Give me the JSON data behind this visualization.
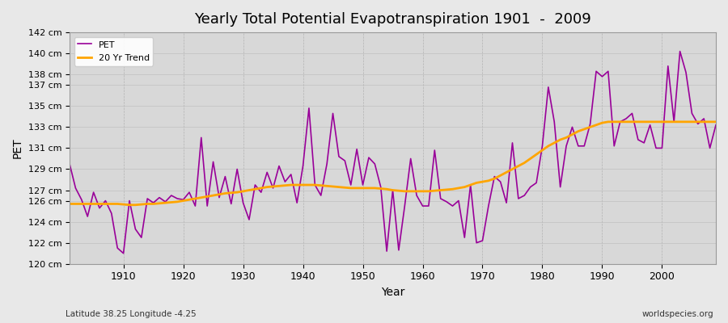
{
  "title": "Yearly Total Potential Evapotranspiration 1901  -  2009",
  "xlabel": "Year",
  "ylabel": "PET",
  "subtitle_left": "Latitude 38.25 Longitude -4.25",
  "subtitle_right": "worldspecies.org",
  "pet_color": "#990099",
  "trend_color": "#FFA500",
  "bg_color": "#e8e8e8",
  "plot_bg_color": "#d8d8d8",
  "ylim": [
    120,
    142
  ],
  "yticks": [
    120,
    122,
    124,
    126,
    127,
    129,
    131,
    133,
    135,
    137,
    138,
    140,
    142
  ],
  "years": [
    1901,
    1902,
    1903,
    1904,
    1905,
    1906,
    1907,
    1908,
    1909,
    1910,
    1911,
    1912,
    1913,
    1914,
    1915,
    1916,
    1917,
    1918,
    1919,
    1920,
    1921,
    1922,
    1923,
    1924,
    1925,
    1926,
    1927,
    1928,
    1929,
    1930,
    1931,
    1932,
    1933,
    1934,
    1935,
    1936,
    1937,
    1938,
    1939,
    1940,
    1941,
    1942,
    1943,
    1944,
    1945,
    1946,
    1947,
    1948,
    1949,
    1950,
    1951,
    1952,
    1953,
    1954,
    1955,
    1956,
    1957,
    1958,
    1959,
    1960,
    1961,
    1962,
    1963,
    1964,
    1965,
    1966,
    1967,
    1968,
    1969,
    1970,
    1971,
    1972,
    1973,
    1974,
    1975,
    1976,
    1977,
    1978,
    1979,
    1980,
    1981,
    1982,
    1983,
    1984,
    1985,
    1986,
    1987,
    1988,
    1989,
    1990,
    1991,
    1992,
    1993,
    1994,
    1995,
    1996,
    1997,
    1998,
    1999,
    2000,
    2001,
    2002,
    2003,
    2004,
    2005,
    2006,
    2007,
    2008,
    2009
  ],
  "pet": [
    129.5,
    127.2,
    126.1,
    124.5,
    126.8,
    125.3,
    126.0,
    124.8,
    121.5,
    121.0,
    126.0,
    123.3,
    122.5,
    126.2,
    125.8,
    126.3,
    125.9,
    126.5,
    126.2,
    126.1,
    126.8,
    125.5,
    132.0,
    125.5,
    129.7,
    126.3,
    128.3,
    125.7,
    129.0,
    125.8,
    124.2,
    127.5,
    126.8,
    128.7,
    127.2,
    129.3,
    127.8,
    128.5,
    125.8,
    129.3,
    134.8,
    127.5,
    126.5,
    129.5,
    134.3,
    130.2,
    129.8,
    127.5,
    130.9,
    127.5,
    130.1,
    129.5,
    127.3,
    121.2,
    127.0,
    121.3,
    125.5,
    130.0,
    126.5,
    125.5,
    125.5,
    130.8,
    126.2,
    125.9,
    125.5,
    126.0,
    122.5,
    127.5,
    122.0,
    122.2,
    125.5,
    128.3,
    127.8,
    125.8,
    131.5,
    126.2,
    126.5,
    127.3,
    127.7,
    131.2,
    136.8,
    133.5,
    127.3,
    131.2,
    133.0,
    131.2,
    131.2,
    133.3,
    138.3,
    137.8,
    138.3,
    131.2,
    133.5,
    133.8,
    134.3,
    131.8,
    131.5,
    133.2,
    131.0,
    131.0,
    138.8,
    133.5,
    140.2,
    138.2,
    134.3,
    133.3,
    133.8,
    131.0,
    133.2
  ],
  "trend": [
    125.7,
    125.7,
    125.7,
    125.7,
    125.7,
    125.7,
    125.7,
    125.7,
    125.7,
    125.65,
    125.6,
    125.6,
    125.65,
    125.7,
    125.7,
    125.75,
    125.8,
    125.85,
    125.9,
    126.0,
    126.1,
    126.2,
    126.3,
    126.4,
    126.5,
    126.6,
    126.7,
    126.75,
    126.8,
    126.9,
    127.0,
    127.1,
    127.2,
    127.3,
    127.35,
    127.4,
    127.45,
    127.5,
    127.5,
    127.5,
    127.5,
    127.5,
    127.45,
    127.4,
    127.35,
    127.3,
    127.25,
    127.2,
    127.2,
    127.2,
    127.2,
    127.2,
    127.15,
    127.1,
    127.0,
    126.95,
    126.9,
    126.9,
    126.9,
    126.9,
    126.9,
    126.95,
    127.0,
    127.05,
    127.1,
    127.2,
    127.3,
    127.5,
    127.7,
    127.8,
    127.9,
    128.1,
    128.4,
    128.7,
    129.0,
    129.3,
    129.6,
    130.0,
    130.4,
    130.8,
    131.2,
    131.5,
    131.8,
    132.0,
    132.3,
    132.6,
    132.8,
    133.0,
    133.2,
    133.4,
    133.5,
    133.5,
    133.5,
    133.5,
    133.5,
    133.5,
    133.5,
    133.5,
    133.5,
    133.5,
    133.5,
    133.5,
    133.5,
    133.5,
    133.5,
    133.5,
    133.5,
    133.5,
    133.5
  ]
}
